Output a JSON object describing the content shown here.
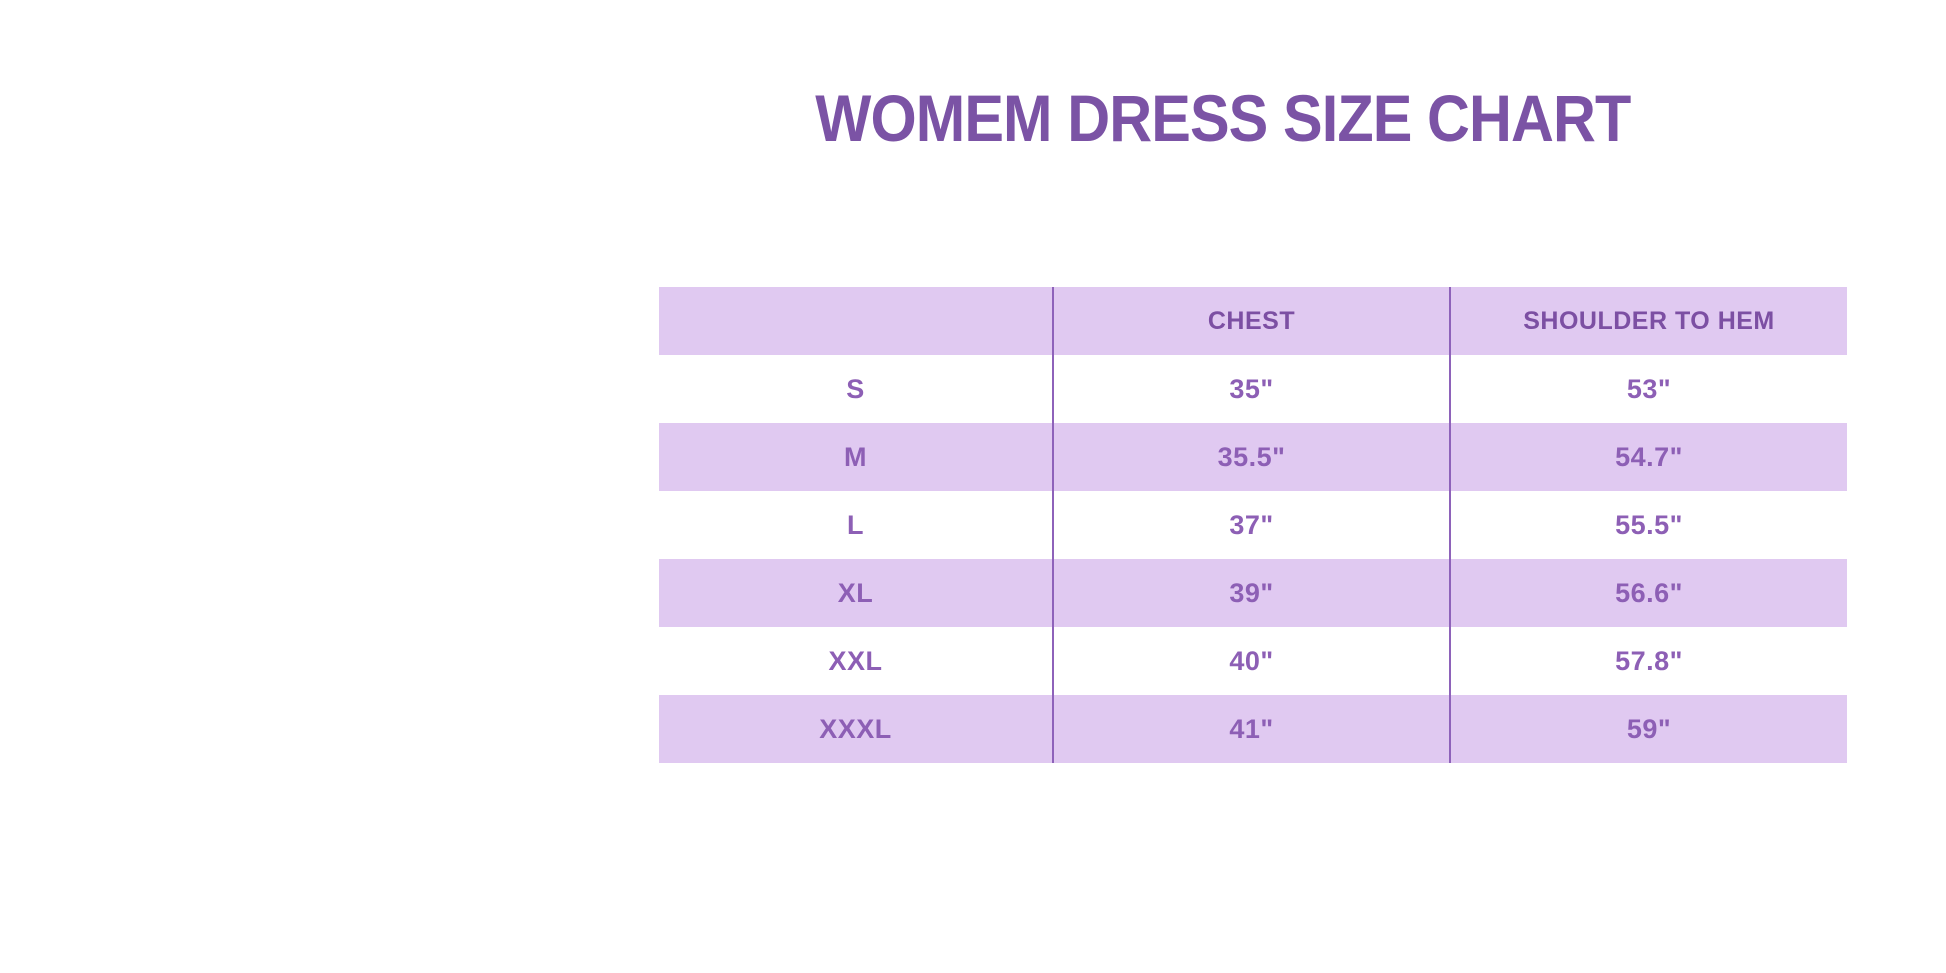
{
  "title": {
    "text": "WOMEM DRESS SIZE CHART"
  },
  "colors": {
    "title_text": "#7b53a5",
    "header_text": "#7c4fa3",
    "cell_text": "#8d5fb5",
    "row_shaded_bg": "#e0c9f1",
    "row_plain_bg": "#ffffff",
    "column_divider": "#8e62ba",
    "page_bg": "#ffffff"
  },
  "table": {
    "headers": {
      "size": "",
      "chest": "CHEST",
      "shoulder": "SHOULDER TO HEM"
    },
    "rows": [
      {
        "size": "S",
        "chest": "35\"",
        "shoulder": "53\""
      },
      {
        "size": "M",
        "chest": "35.5\"",
        "shoulder": "54.7\""
      },
      {
        "size": "L",
        "chest": "37\"",
        "shoulder": "55.5\""
      },
      {
        "size": "XL",
        "chest": "39\"",
        "shoulder": "56.6\""
      },
      {
        "size": "XXL",
        "chest": "40\"",
        "shoulder": "57.8\""
      },
      {
        "size": "XXXL",
        "chest": "41\"",
        "shoulder": "59\""
      }
    ]
  },
  "chart_data": {
    "type": "table",
    "title": "WOMEM DRESS SIZE CHART",
    "columns": [
      "",
      "CHEST",
      "SHOULDER TO HEM"
    ],
    "rows": [
      [
        "S",
        "35\"",
        "53\""
      ],
      [
        "M",
        "35.5\"",
        "54.7\""
      ],
      [
        "L",
        "37\"",
        "55.5\""
      ],
      [
        "XL",
        "39\"",
        "56.6\""
      ],
      [
        "XXL",
        "40\"",
        "57.8\""
      ],
      [
        "XXXL",
        "41\"",
        "59\""
      ]
    ],
    "layout": {
      "row_striping": "header and even data rows lavender, odd data rows white",
      "column_dividers": "vertical purple lines between the three columns",
      "outer_border": "none"
    }
  }
}
